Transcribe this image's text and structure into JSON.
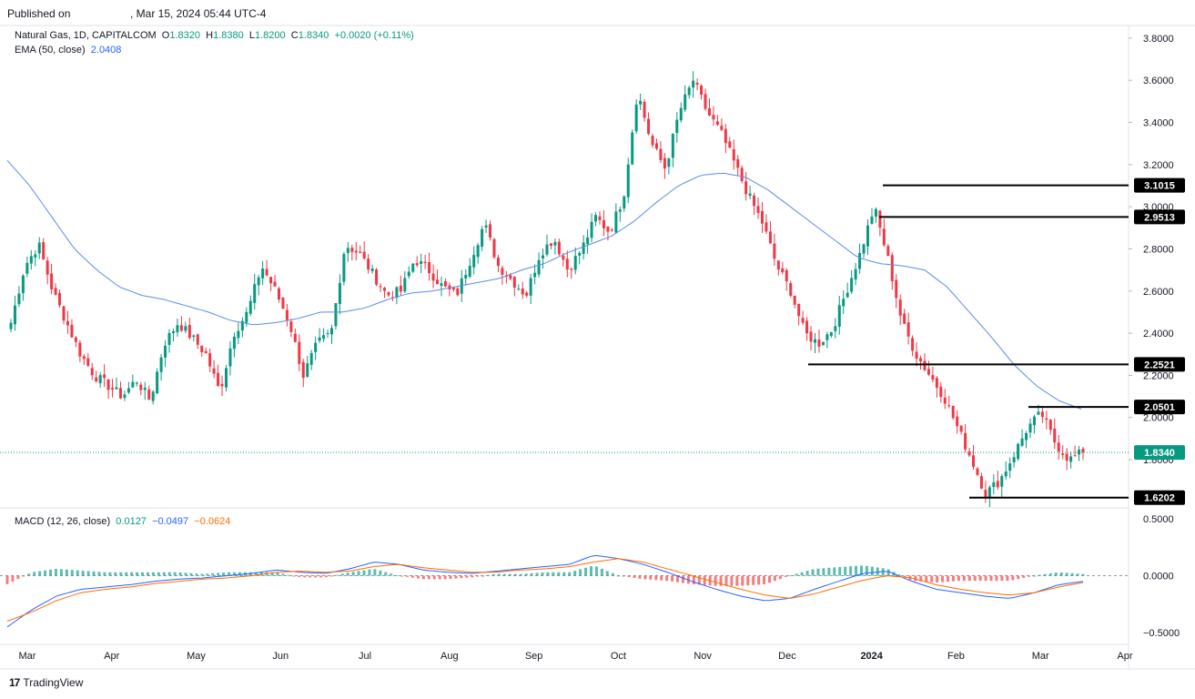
{
  "header": {
    "published_label": "Published on",
    "published_date": ", Mar 15, 2024 05:44 UTC-4"
  },
  "legend": {
    "symbol": "Natural Gas, 1D, CAPITALCOM",
    "o_label": "O",
    "o": "1.8320",
    "h_label": "H",
    "h": "1.8380",
    "l_label": "L",
    "l": "1.8200",
    "c_label": "C",
    "c": "1.8340",
    "change": "+0.0020 (+0.11%)",
    "ema_label": "EMA (50, close)",
    "ema_value": "2.0408",
    "macd_label": "MACD (12, 26, close)",
    "macd_hist": "0.0127",
    "macd_line": "−0.0497",
    "macd_signal": "−0.0624"
  },
  "footer": {
    "brand": "TradingView"
  },
  "colors": {
    "up": "#089981",
    "down": "#f23645",
    "ema": "#5b8ce6",
    "macd": "#2962ff",
    "signal": "#ff6d00",
    "hist_up": "#26a69a",
    "hist_down": "#ef5350"
  },
  "chart_data": {
    "type": "candlestick",
    "price_axis": {
      "ticks": [
        "3.8000",
        "3.6000",
        "3.4000",
        "3.2000",
        "3.0000",
        "2.8000",
        "2.6000",
        "2.4000",
        "2.2000",
        "2.0000",
        "1.8000"
      ],
      "range": [
        1.58,
        3.86
      ]
    },
    "macd_axis": {
      "ticks": [
        "0.5000",
        "0.0000",
        "-0.5000"
      ],
      "range": [
        -0.58,
        0.58
      ]
    },
    "x_axis": {
      "labels": [
        "Mar",
        "Apr",
        "May",
        "Jun",
        "Jul",
        "Aug",
        "Sep",
        "Oct",
        "Nov",
        "Dec",
        "2024",
        "Feb",
        "Mar",
        "Apr"
      ],
      "bold": "2024"
    },
    "horizontal_levels": [
      {
        "value": 3.1015,
        "label": "3.1015"
      },
      {
        "value": 2.9513,
        "label": "2.9513"
      },
      {
        "value": 2.2521,
        "label": "2.2521"
      },
      {
        "value": 2.0501,
        "label": "2.0501"
      },
      {
        "value": 1.6202,
        "label": "1.6202"
      }
    ],
    "last_price": {
      "value": 1.834,
      "label": "1.8340"
    },
    "close_waypoints": [
      2.45,
      2.72,
      2.82,
      2.6,
      2.45,
      2.3,
      2.2,
      2.15,
      2.1,
      2.18,
      2.08,
      2.35,
      2.45,
      2.38,
      2.3,
      2.12,
      2.4,
      2.5,
      2.72,
      2.6,
      2.45,
      2.2,
      2.35,
      2.4,
      2.82,
      2.78,
      2.68,
      2.58,
      2.6,
      2.75,
      2.7,
      2.62,
      2.58,
      2.75,
      2.92,
      2.72,
      2.65,
      2.58,
      2.78,
      2.85,
      2.7,
      2.8,
      2.95,
      2.88,
      3.05,
      3.55,
      3.3,
      3.18,
      3.45,
      3.6,
      3.45,
      3.35,
      3.2,
      3.05,
      2.92,
      2.72,
      2.6,
      2.4,
      2.35,
      2.42,
      2.6,
      2.78,
      3.0,
      2.75,
      2.45,
      2.3,
      2.2,
      2.1,
      1.95,
      1.8,
      1.64,
      1.7,
      1.82,
      1.95,
      2.02,
      1.88,
      1.8,
      1.834
    ],
    "ema_waypoints": [
      3.22,
      3.1,
      2.95,
      2.8,
      2.7,
      2.62,
      2.58,
      2.56,
      2.53,
      2.5,
      2.46,
      2.44,
      2.45,
      2.47,
      2.5,
      2.5,
      2.52,
      2.56,
      2.59,
      2.6,
      2.62,
      2.64,
      2.66,
      2.7,
      2.73,
      2.78,
      2.82,
      2.86,
      2.93,
      3.02,
      3.1,
      3.15,
      3.16,
      3.14,
      3.08,
      3.0,
      2.92,
      2.84,
      2.76,
      2.73,
      2.72,
      2.7,
      2.62,
      2.5,
      2.38,
      2.25,
      2.15,
      2.08,
      2.04
    ],
    "macd_waypoints": [
      -0.45,
      -0.3,
      -0.18,
      -0.12,
      -0.1,
      -0.08,
      -0.05,
      -0.03,
      -0.02,
      0.0,
      0.02,
      0.05,
      0.03,
      0.02,
      0.06,
      0.12,
      0.1,
      0.05,
      0.03,
      0.02,
      0.04,
      0.06,
      0.08,
      0.1,
      0.18,
      0.15,
      0.1,
      0.03,
      -0.05,
      -0.12,
      -0.18,
      -0.22,
      -0.2,
      -0.12,
      -0.05,
      0.02,
      0.04,
      -0.05,
      -0.12,
      -0.15,
      -0.18,
      -0.2,
      -0.15,
      -0.08,
      -0.05
    ],
    "signal_waypoints": [
      -0.4,
      -0.32,
      -0.22,
      -0.15,
      -0.12,
      -0.1,
      -0.07,
      -0.05,
      -0.03,
      -0.02,
      0.0,
      0.03,
      0.04,
      0.03,
      0.04,
      0.08,
      0.1,
      0.07,
      0.05,
      0.03,
      0.03,
      0.05,
      0.06,
      0.08,
      0.12,
      0.15,
      0.12,
      0.06,
      0.0,
      -0.06,
      -0.12,
      -0.17,
      -0.2,
      -0.16,
      -0.1,
      -0.04,
      0.0,
      -0.02,
      -0.08,
      -0.12,
      -0.15,
      -0.17,
      -0.15,
      -0.1,
      -0.06
    ]
  }
}
